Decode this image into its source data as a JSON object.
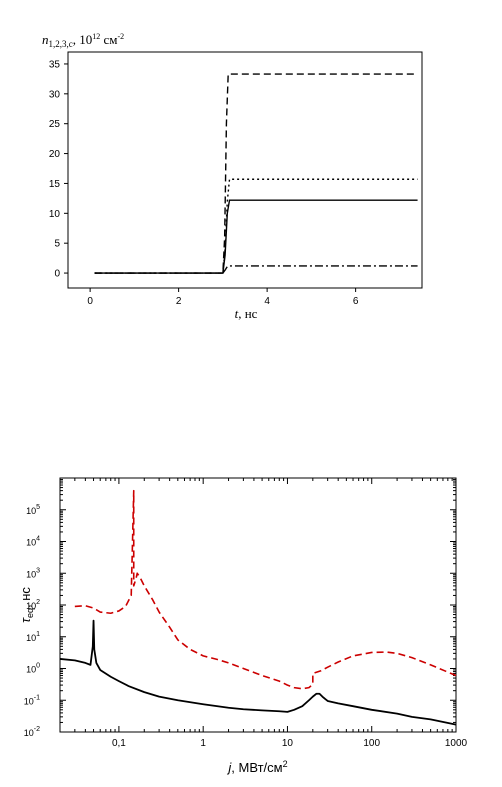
{
  "chart_data": [
    {
      "type": "line",
      "ylabel": {
        "var": "n",
        "sub": "1,2,3,c",
        "unit_pre": ", 10",
        "unit_sup": "12",
        "unit_post": " см",
        "unit_sup2": "-2"
      },
      "xlabel": {
        "var": "t",
        "unit": ", нс"
      },
      "xlim": [
        -0.5,
        7.5
      ],
      "ylim": [
        -2.5,
        37
      ],
      "xticks": [
        0,
        2,
        4,
        6
      ],
      "xtick_labels": [
        "0",
        "2",
        "4",
        "6"
      ],
      "yticks": [
        0,
        5,
        10,
        15,
        20,
        25,
        30,
        35
      ],
      "ytick_labels": [
        "0",
        "5",
        "10",
        "15",
        "20",
        "25",
        "30",
        "35"
      ],
      "grid": false,
      "series": [
        {
          "style": "dash",
          "x": [
            0.1,
            3.0,
            3.04,
            3.08,
            3.12,
            7.4
          ],
          "y": [
            0,
            0,
            6,
            25,
            33.3,
            33.3
          ]
        },
        {
          "style": "dot",
          "x": [
            0.1,
            3.0,
            3.05,
            3.1,
            3.15,
            7.4
          ],
          "y": [
            0,
            0,
            4,
            12,
            15.7,
            15.7
          ]
        },
        {
          "style": "solid",
          "x": [
            0.1,
            3.0,
            3.05,
            3.1,
            3.15,
            7.4
          ],
          "y": [
            0,
            0,
            3,
            10,
            12.2,
            12.2
          ]
        },
        {
          "style": "dashdot",
          "x": [
            0.1,
            3.0,
            3.05,
            3.1,
            3.15,
            7.4
          ],
          "y": [
            0,
            0,
            0.5,
            1.1,
            1.2,
            1.2
          ]
        }
      ]
    },
    {
      "type": "line",
      "ylabel": {
        "var": "τ",
        "sub": "eq",
        "unit": ", нс"
      },
      "xlabel": {
        "var": "j",
        "unit": ", МВт/см",
        "sup": "2"
      },
      "xscale": "log",
      "yscale": "log",
      "xlim": [
        0.02,
        1000
      ],
      "ylim": [
        0.01,
        1000000
      ],
      "xticks": [
        0.1,
        1,
        10,
        100,
        1000
      ],
      "xtick_labels": [
        "0,1",
        "1",
        "10",
        "100",
        "1000"
      ],
      "yticks": [
        0.01,
        0.1,
        1,
        10,
        100,
        1000,
        10000,
        100000
      ],
      "ytick_labels": [
        {
          "base": "10",
          "exp": "-2"
        },
        {
          "base": "10",
          "exp": "-1"
        },
        {
          "base": "10",
          "exp": "0"
        },
        {
          "base": "10",
          "exp": "1"
        },
        {
          "base": "10",
          "exp": "2"
        },
        {
          "base": "10",
          "exp": "3"
        },
        {
          "base": "10",
          "exp": "4"
        },
        {
          "base": "10",
          "exp": "5"
        }
      ],
      "grid": false,
      "series": [
        {
          "style": "solid",
          "color": "#000000",
          "x": [
            0.02,
            0.03,
            0.04,
            0.046,
            0.049,
            0.05,
            0.051,
            0.054,
            0.06,
            0.08,
            0.1,
            0.13,
            0.2,
            0.3,
            0.5,
            1,
            2,
            3,
            5,
            8,
            10,
            12,
            15,
            18,
            20,
            22,
            24,
            26,
            28,
            30,
            40,
            60,
            100,
            200,
            300,
            500,
            1000
          ],
          "y": [
            2,
            1.8,
            1.5,
            1.3,
            5,
            32,
            4,
            1.5,
            0.9,
            0.55,
            0.4,
            0.28,
            0.18,
            0.13,
            0.1,
            0.075,
            0.058,
            0.052,
            0.048,
            0.045,
            0.043,
            0.05,
            0.065,
            0.1,
            0.13,
            0.16,
            0.16,
            0.13,
            0.11,
            0.095,
            0.08,
            0.065,
            0.05,
            0.038,
            0.03,
            0.025,
            0.017
          ]
        },
        {
          "style": "dash",
          "color": "#cc0000",
          "x": [
            0.03,
            0.04,
            0.05,
            0.06,
            0.08,
            0.1,
            0.12,
            0.14,
            0.15,
            0.15,
            0.16,
            0.165,
            0.18,
            0.2,
            0.25,
            0.3,
            0.4,
            0.5,
            0.7,
            1,
            1.5,
            2,
            3,
            5,
            8,
            10,
            12,
            15,
            18,
            20,
            20,
            25,
            30,
            40,
            60,
            100,
            150,
            200,
            300,
            500,
            1000
          ],
          "y": [
            90,
            95,
            80,
            60,
            55,
            65,
            90,
            200,
            400000,
            400,
            700,
            1000,
            700,
            400,
            150,
            60,
            20,
            8,
            4,
            2.5,
            1.9,
            1.5,
            1,
            0.6,
            0.4,
            0.3,
            0.25,
            0.23,
            0.25,
            0.32,
            0.7,
            0.85,
            1.1,
            1.6,
            2.5,
            3.2,
            3.3,
            3,
            2.2,
            1.3,
            0.6
          ]
        }
      ]
    }
  ]
}
